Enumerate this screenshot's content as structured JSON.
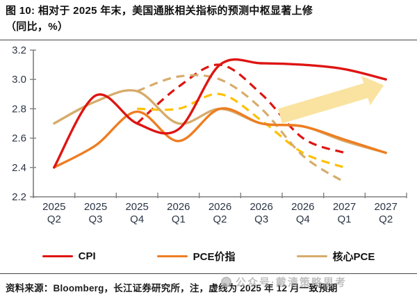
{
  "title": {
    "line1": "图 10: 相对于 2025 年末，美国通胀相关指标的预测中枢显著上修",
    "line2": "（同比，%）"
  },
  "source": "资料来源：Bloomberg，长江证券研究所，注，虚线为 2025 年 12 月一致预期",
  "watermark": {
    "text": "公众号·戴清策略思考"
  },
  "legend": [
    {
      "label": "CPI",
      "color": "#DE1512"
    },
    {
      "label": "PCE价指",
      "color": "#EE7D22"
    },
    {
      "label": "核心PCE",
      "color": "#D6AC6B"
    }
  ],
  "chart_data": {
    "type": "line",
    "title": "美国通胀相关指标预测（同比，%）",
    "categories": [
      {
        "year": "2025",
        "quarter": "Q2"
      },
      {
        "year": "2025",
        "quarter": "Q3"
      },
      {
        "year": "2025",
        "quarter": "Q4"
      },
      {
        "year": "2026",
        "quarter": "Q1"
      },
      {
        "year": "2026",
        "quarter": "Q2"
      },
      {
        "year": "2026",
        "quarter": "Q3"
      },
      {
        "year": "2026",
        "quarter": "Q4"
      },
      {
        "year": "2027",
        "quarter": "Q1"
      },
      {
        "year": "2027",
        "quarter": "Q2"
      }
    ],
    "ylim": [
      2.2,
      3.2
    ],
    "yticks": [
      2.2,
      2.4,
      2.6,
      2.8,
      3.0,
      3.2
    ],
    "grid": false,
    "legend_position": "bottom",
    "series": [
      {
        "name": "CPI",
        "style": "solid",
        "color": "#DE1512",
        "values": [
          2.4,
          2.89,
          2.7,
          2.66,
          3.1,
          3.11,
          3.1,
          3.07,
          3.0
        ]
      },
      {
        "name": "PCE价指",
        "style": "solid",
        "color": "#EE7D22",
        "values": [
          2.4,
          2.55,
          2.78,
          2.58,
          2.8,
          2.7,
          2.68,
          2.59,
          2.5
        ]
      },
      {
        "name": "核心PCE",
        "style": "solid",
        "color": "#D6AC6B",
        "values": [
          2.7,
          2.85,
          2.92,
          2.7,
          2.8,
          2.7,
          2.68,
          2.58,
          2.5
        ]
      },
      {
        "name": "CPI（2025年12月一致预期，虚线）",
        "style": "dashed",
        "color": "#DE1512",
        "values": [
          null,
          null,
          2.7,
          2.95,
          3.1,
          2.9,
          2.6,
          2.5,
          null
        ]
      },
      {
        "name": "PCE价指（2025年12月一致预期，虚线）",
        "style": "dashed",
        "color": "#FFC000",
        "values": [
          null,
          null,
          2.8,
          2.8,
          2.9,
          2.72,
          2.5,
          2.4,
          null
        ]
      },
      {
        "name": "核心PCE（2025年12月一致预期，虚线）",
        "style": "dashed",
        "color": "#D6AC6B",
        "values": [
          null,
          null,
          2.92,
          3.02,
          3.0,
          2.8,
          2.48,
          2.3,
          null
        ]
      }
    ],
    "annotation_arrow": {
      "from": [
        5.45,
        2.75
      ],
      "to": [
        7.95,
        2.96
      ],
      "color": "#FAE3A0",
      "meaning": "预测中枢显著上修"
    }
  }
}
